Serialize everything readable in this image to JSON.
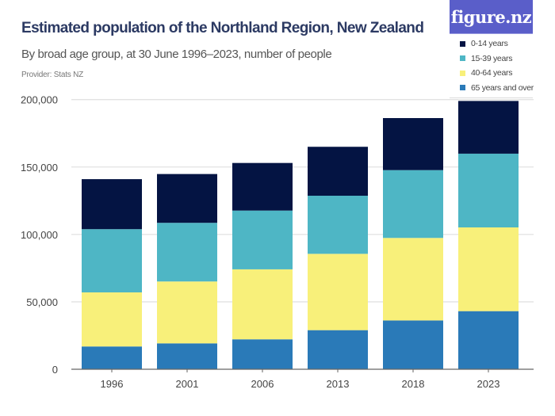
{
  "title": "Estimated population of the Northland Region, New Zealand",
  "subtitle": "By broad age group, at 30 June 1996–2023, number of people",
  "provider": "Provider: Stats NZ",
  "logo": "figure.nz",
  "chart_data": {
    "type": "bar",
    "stacked": true,
    "title": "Estimated population of the Northland Region, New Zealand",
    "subtitle": "By broad age group, at 30 June 1996–2023, number of people",
    "categories": [
      "1996",
      "2001",
      "2006",
      "2013",
      "2018",
      "2023"
    ],
    "series": [
      {
        "name": "65 years and over",
        "color": "#2a7ab8",
        "values": [
          16900,
          19200,
          22200,
          29000,
          36200,
          43100
        ]
      },
      {
        "name": "40-64 years",
        "color": "#f8f07a",
        "values": [
          40100,
          45900,
          51900,
          56600,
          61200,
          62100
        ]
      },
      {
        "name": "15-39 years",
        "color": "#4eb6c5",
        "values": [
          46900,
          43500,
          43600,
          43100,
          50300,
          54700
        ]
      },
      {
        "name": "0-14 years",
        "color": "#041443",
        "values": [
          37100,
          36200,
          35300,
          36300,
          38600,
          39100
        ]
      }
    ],
    "ylim": [
      0,
      200000
    ],
    "yticks": [
      "0",
      "50,000",
      "100,000",
      "150,000",
      "200,000"
    ],
    "grid": true,
    "legend": "top-right"
  }
}
